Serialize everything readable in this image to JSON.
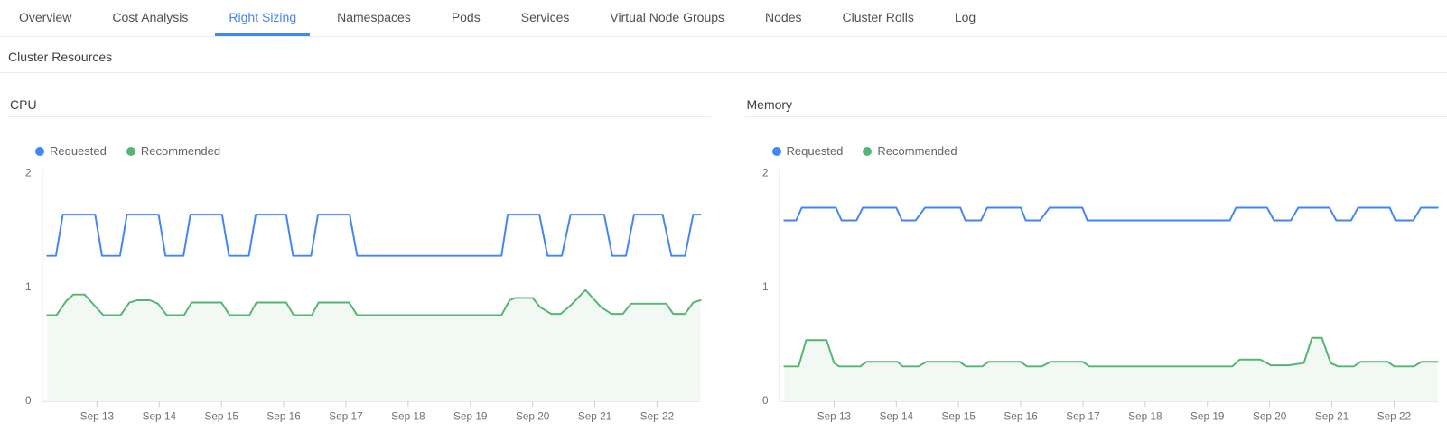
{
  "colors": {
    "accent": "#4285f4",
    "requested": "#4285f4",
    "recommended": "#53b671"
  },
  "tabs": {
    "items": [
      {
        "label": "Overview",
        "active": false
      },
      {
        "label": "Cost Analysis",
        "active": false
      },
      {
        "label": "Right Sizing",
        "active": true
      },
      {
        "label": "Namespaces",
        "active": false
      },
      {
        "label": "Pods",
        "active": false
      },
      {
        "label": "Services",
        "active": false
      },
      {
        "label": "Virtual Node Groups",
        "active": false
      },
      {
        "label": "Nodes",
        "active": false
      },
      {
        "label": "Cluster Rolls",
        "active": false
      },
      {
        "label": "Log",
        "active": false
      }
    ]
  },
  "section": {
    "title": "Cluster Resources"
  },
  "chart_data": [
    {
      "type": "line",
      "title": "CPU",
      "xlabel": "",
      "ylabel": "",
      "ylim": [
        0,
        2
      ],
      "yticks": [
        0,
        1,
        2
      ],
      "grid": false,
      "legend_position": "top-left",
      "xticks": [
        {
          "day": 13,
          "label": "Sep 13"
        },
        {
          "day": 14,
          "label": "Sep 14"
        },
        {
          "day": 15,
          "label": "Sep 15"
        },
        {
          "day": 16,
          "label": "Sep 16"
        },
        {
          "day": 17,
          "label": "Sep 17"
        },
        {
          "day": 18,
          "label": "Sep 18"
        },
        {
          "day": 19,
          "label": "Sep 19"
        },
        {
          "day": 20,
          "label": "Sep 20"
        },
        {
          "day": 21,
          "label": "Sep 21"
        },
        {
          "day": 22,
          "label": "Sep 22"
        }
      ],
      "series": [
        {
          "name": "Requested",
          "color": "#4285f4",
          "area": false,
          "points": [
            [
              12.2,
              1.27
            ],
            [
              12.34,
              1.27
            ],
            [
              12.45,
              1.63
            ],
            [
              12.97,
              1.63
            ],
            [
              13.08,
              1.27
            ],
            [
              13.37,
              1.27
            ],
            [
              13.48,
              1.63
            ],
            [
              13.99,
              1.63
            ],
            [
              14.1,
              1.27
            ],
            [
              14.39,
              1.27
            ],
            [
              14.5,
              1.63
            ],
            [
              15.01,
              1.63
            ],
            [
              15.12,
              1.27
            ],
            [
              15.44,
              1.27
            ],
            [
              15.55,
              1.63
            ],
            [
              16.04,
              1.63
            ],
            [
              16.15,
              1.27
            ],
            [
              16.44,
              1.27
            ],
            [
              16.55,
              1.63
            ],
            [
              17.06,
              1.63
            ],
            [
              17.18,
              1.27
            ],
            [
              19.5,
              1.27
            ],
            [
              19.6,
              1.63
            ],
            [
              20.11,
              1.63
            ],
            [
              20.24,
              1.27
            ],
            [
              20.47,
              1.27
            ],
            [
              20.61,
              1.63
            ],
            [
              21.15,
              1.63
            ],
            [
              21.28,
              1.27
            ],
            [
              21.5,
              1.27
            ],
            [
              21.63,
              1.63
            ],
            [
              22.09,
              1.63
            ],
            [
              22.23,
              1.27
            ],
            [
              22.45,
              1.27
            ],
            [
              22.58,
              1.63
            ],
            [
              22.7,
              1.63
            ]
          ]
        },
        {
          "name": "Recommended",
          "color": "#53b671",
          "area": true,
          "area_color": "#f2f9f5",
          "points": [
            [
              12.2,
              0.75
            ],
            [
              12.35,
              0.75
            ],
            [
              12.5,
              0.87
            ],
            [
              12.62,
              0.93
            ],
            [
              12.8,
              0.93
            ],
            [
              12.95,
              0.84
            ],
            [
              13.1,
              0.75
            ],
            [
              13.38,
              0.75
            ],
            [
              13.52,
              0.86
            ],
            [
              13.65,
              0.88
            ],
            [
              13.85,
              0.88
            ],
            [
              13.98,
              0.85
            ],
            [
              14.12,
              0.75
            ],
            [
              14.4,
              0.75
            ],
            [
              14.52,
              0.86
            ],
            [
              15.0,
              0.86
            ],
            [
              15.13,
              0.75
            ],
            [
              15.45,
              0.75
            ],
            [
              15.56,
              0.86
            ],
            [
              16.04,
              0.86
            ],
            [
              16.16,
              0.75
            ],
            [
              16.45,
              0.75
            ],
            [
              16.56,
              0.86
            ],
            [
              17.05,
              0.86
            ],
            [
              17.18,
              0.75
            ],
            [
              19.5,
              0.75
            ],
            [
              19.63,
              0.88
            ],
            [
              19.72,
              0.9
            ],
            [
              20.0,
              0.9
            ],
            [
              20.12,
              0.82
            ],
            [
              20.3,
              0.76
            ],
            [
              20.45,
              0.76
            ],
            [
              20.62,
              0.84
            ],
            [
              20.85,
              0.97
            ],
            [
              21.1,
              0.82
            ],
            [
              21.27,
              0.76
            ],
            [
              21.45,
              0.76
            ],
            [
              21.58,
              0.85
            ],
            [
              22.15,
              0.85
            ],
            [
              22.26,
              0.76
            ],
            [
              22.45,
              0.76
            ],
            [
              22.58,
              0.86
            ],
            [
              22.7,
              0.88
            ]
          ]
        }
      ]
    },
    {
      "type": "line",
      "title": "Memory",
      "xlabel": "",
      "ylabel": "",
      "ylim": [
        0,
        2
      ],
      "yticks": [
        0,
        1,
        2
      ],
      "grid": false,
      "legend_position": "top-left",
      "xticks": [
        {
          "day": 13,
          "label": "Sep 13"
        },
        {
          "day": 14,
          "label": "Sep 14"
        },
        {
          "day": 15,
          "label": "Sep 15"
        },
        {
          "day": 16,
          "label": "Sep 16"
        },
        {
          "day": 17,
          "label": "Sep 17"
        },
        {
          "day": 18,
          "label": "Sep 18"
        },
        {
          "day": 19,
          "label": "Sep 19"
        },
        {
          "day": 20,
          "label": "Sep 20"
        },
        {
          "day": 21,
          "label": "Sep 21"
        },
        {
          "day": 22,
          "label": "Sep 22"
        }
      ],
      "series": [
        {
          "name": "Requested",
          "color": "#4285f4",
          "area": false,
          "points": [
            [
              12.2,
              1.58
            ],
            [
              12.39,
              1.58
            ],
            [
              12.48,
              1.69
            ],
            [
              13.03,
              1.69
            ],
            [
              13.12,
              1.58
            ],
            [
              13.36,
              1.58
            ],
            [
              13.46,
              1.69
            ],
            [
              14.0,
              1.69
            ],
            [
              14.09,
              1.58
            ],
            [
              14.31,
              1.58
            ],
            [
              14.46,
              1.69
            ],
            [
              15.03,
              1.69
            ],
            [
              15.11,
              1.58
            ],
            [
              15.36,
              1.58
            ],
            [
              15.46,
              1.69
            ],
            [
              16.0,
              1.69
            ],
            [
              16.08,
              1.58
            ],
            [
              16.31,
              1.58
            ],
            [
              16.46,
              1.69
            ],
            [
              16.99,
              1.69
            ],
            [
              17.07,
              1.58
            ],
            [
              19.36,
              1.58
            ],
            [
              19.46,
              1.69
            ],
            [
              19.96,
              1.69
            ],
            [
              20.07,
              1.58
            ],
            [
              20.34,
              1.58
            ],
            [
              20.46,
              1.69
            ],
            [
              20.96,
              1.69
            ],
            [
              21.07,
              1.58
            ],
            [
              21.31,
              1.58
            ],
            [
              21.42,
              1.69
            ],
            [
              21.93,
              1.69
            ],
            [
              22.02,
              1.58
            ],
            [
              22.31,
              1.58
            ],
            [
              22.43,
              1.69
            ],
            [
              22.7,
              1.69
            ]
          ]
        },
        {
          "name": "Recommended",
          "color": "#53b671",
          "area": true,
          "area_color": "#f2f9f5",
          "points": [
            [
              12.2,
              0.3
            ],
            [
              12.43,
              0.3
            ],
            [
              12.55,
              0.53
            ],
            [
              12.88,
              0.53
            ],
            [
              13.0,
              0.33
            ],
            [
              13.08,
              0.3
            ],
            [
              13.42,
              0.3
            ],
            [
              13.52,
              0.34
            ],
            [
              14.02,
              0.34
            ],
            [
              14.1,
              0.3
            ],
            [
              14.36,
              0.3
            ],
            [
              14.48,
              0.34
            ],
            [
              15.02,
              0.34
            ],
            [
              15.12,
              0.3
            ],
            [
              15.38,
              0.3
            ],
            [
              15.48,
              0.34
            ],
            [
              16.0,
              0.34
            ],
            [
              16.1,
              0.3
            ],
            [
              16.34,
              0.3
            ],
            [
              16.48,
              0.34
            ],
            [
              17.0,
              0.34
            ],
            [
              17.1,
              0.3
            ],
            [
              19.4,
              0.3
            ],
            [
              19.52,
              0.36
            ],
            [
              19.85,
              0.36
            ],
            [
              20.02,
              0.31
            ],
            [
              20.3,
              0.31
            ],
            [
              20.55,
              0.33
            ],
            [
              20.68,
              0.55
            ],
            [
              20.84,
              0.55
            ],
            [
              20.98,
              0.33
            ],
            [
              21.1,
              0.3
            ],
            [
              21.35,
              0.3
            ],
            [
              21.46,
              0.34
            ],
            [
              21.9,
              0.34
            ],
            [
              22.0,
              0.3
            ],
            [
              22.32,
              0.3
            ],
            [
              22.44,
              0.34
            ],
            [
              22.7,
              0.34
            ]
          ]
        }
      ]
    }
  ]
}
